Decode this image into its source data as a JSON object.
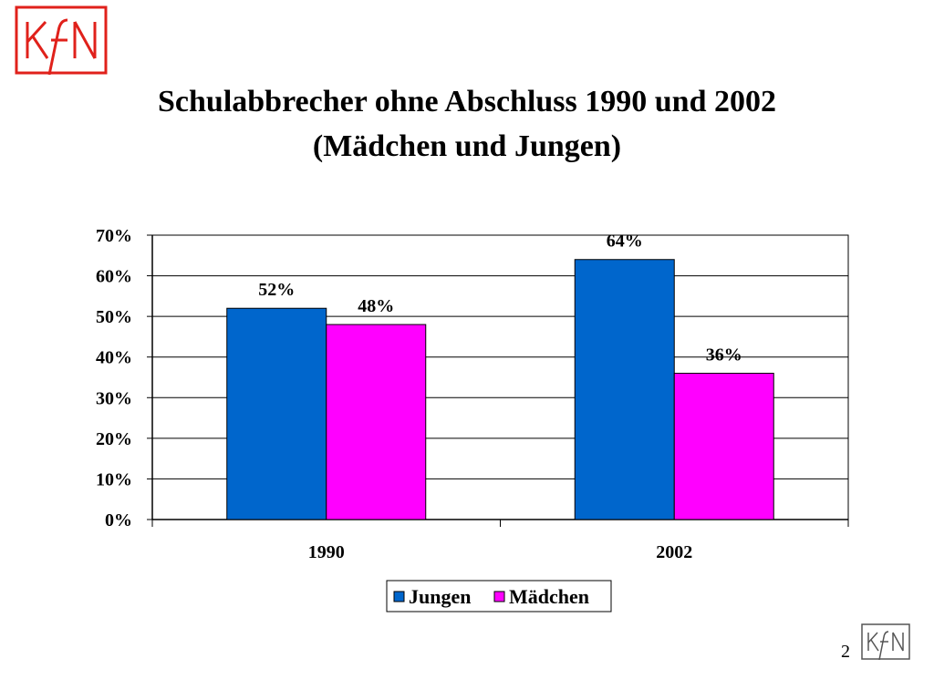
{
  "logo": {
    "text": "KfN",
    "color": "#e0211b"
  },
  "title_line1": "Schulabbrecher ohne Abschluss 1990 und 2002",
  "title_line2": "(Mädchen und Jungen)",
  "page_number": "2",
  "colors": {
    "jungen": "#0066cc",
    "maedchen": "#ff00ff",
    "gridline": "#000000",
    "plot_bg": "#ffffff"
  },
  "chart_data": {
    "type": "bar",
    "title": "Schulabbrecher ohne Abschluss 1990 und 2002 (Mädchen und Jungen)",
    "categories": [
      "1990",
      "2002"
    ],
    "series": [
      {
        "name": "Jungen",
        "values": [
          52,
          64
        ],
        "labels": [
          "52%",
          "64%"
        ]
      },
      {
        "name": "Mädchen",
        "values": [
          48,
          36
        ],
        "labels": [
          "48%",
          "36%"
        ]
      }
    ],
    "yticks": [
      "0%",
      "10%",
      "20%",
      "30%",
      "40%",
      "50%",
      "60%",
      "70%"
    ],
    "ylim": [
      0,
      70
    ],
    "grid": true,
    "legend": "bottom"
  }
}
